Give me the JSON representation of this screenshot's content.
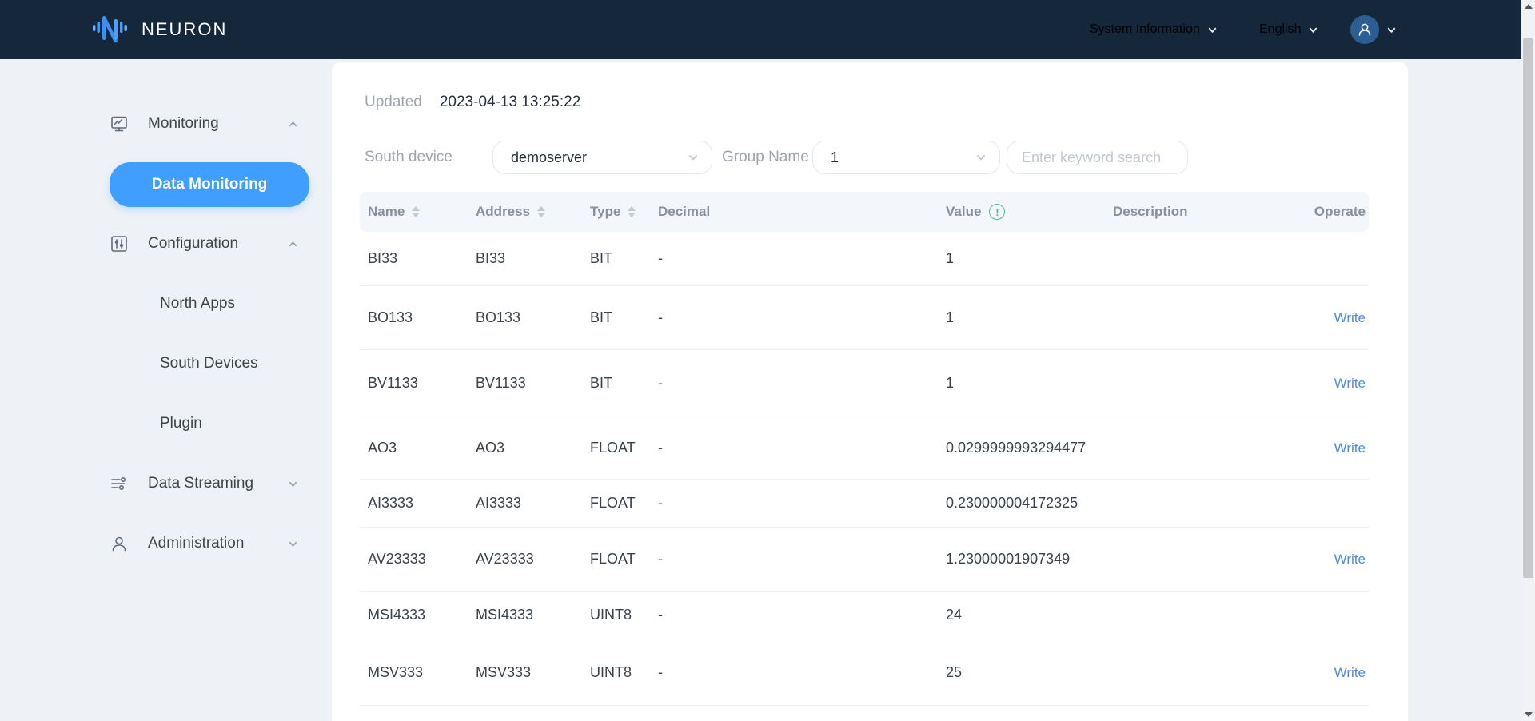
{
  "brand": {
    "name": "NEURON"
  },
  "header": {
    "system_information_label": "System Information",
    "language_label": "English"
  },
  "sidebar": {
    "items": [
      {
        "label": "Monitoring",
        "icon": "monitor-icon",
        "state": "expanded"
      },
      {
        "label": "Data Monitoring",
        "state": "active"
      },
      {
        "label": "Configuration",
        "icon": "sliders-icon",
        "state": "expanded"
      },
      {
        "label": "North Apps"
      },
      {
        "label": "South Devices"
      },
      {
        "label": "Plugin"
      },
      {
        "label": "Data Streaming",
        "icon": "stream-icon",
        "state": "collapsed"
      },
      {
        "label": "Administration",
        "icon": "user-icon",
        "state": "collapsed"
      }
    ]
  },
  "toolbar": {
    "updated_label": "Updated",
    "updated_time": "2023-04-13 13:25:22",
    "south_device_label": "South device",
    "south_device_value": "demoserver",
    "group_name_label": "Group Name",
    "group_name_value": "1",
    "search_placeholder": "Enter keyword search"
  },
  "table": {
    "columns": [
      {
        "label": "Name",
        "sortable": true
      },
      {
        "label": "Address",
        "sortable": true
      },
      {
        "label": "Type",
        "sortable": true
      },
      {
        "label": "Decimal",
        "sortable": false
      },
      {
        "label": "Value",
        "sortable": false,
        "icon": "info-circle-icon"
      },
      {
        "label": "Description",
        "sortable": false
      },
      {
        "label": "Operate",
        "sortable": false
      }
    ],
    "write_label": "Write",
    "rows": [
      {
        "name": "BI33",
        "address": "BI33",
        "type": "BIT",
        "decimal": "-",
        "value": "1",
        "description": "",
        "write": false
      },
      {
        "name": "BO133",
        "address": "BO133",
        "type": "BIT",
        "decimal": "-",
        "value": "1",
        "description": "",
        "write": true
      },
      {
        "name": "BV1133",
        "address": "BV1133",
        "type": "BIT",
        "decimal": "-",
        "value": "1",
        "description": "",
        "write": true
      },
      {
        "name": "AO3",
        "address": "AO3",
        "type": "FLOAT",
        "decimal": "-",
        "value": "0.0299999993294477",
        "description": "",
        "write": true
      },
      {
        "name": "AI3333",
        "address": "AI3333",
        "type": "FLOAT",
        "decimal": "-",
        "value": "0.230000004172325",
        "description": "",
        "write": false
      },
      {
        "name": "AV23333",
        "address": "AV23333",
        "type": "FLOAT",
        "decimal": "-",
        "value": "1.23000001907349",
        "description": "",
        "write": true
      },
      {
        "name": "MSI4333",
        "address": "MSI4333",
        "type": "UINT8",
        "decimal": "-",
        "value": "24",
        "description": "",
        "write": false
      },
      {
        "name": "MSV333",
        "address": "MSV333",
        "type": "UINT8",
        "decimal": "-",
        "value": "25",
        "description": "",
        "write": true
      }
    ]
  },
  "colors": {
    "header_navy": "#15273b",
    "accent_blue": "#3f9eff",
    "link_blue": "#4a8af2",
    "success_green": "#4dbe8b",
    "page_bg": "#eef2f6"
  }
}
